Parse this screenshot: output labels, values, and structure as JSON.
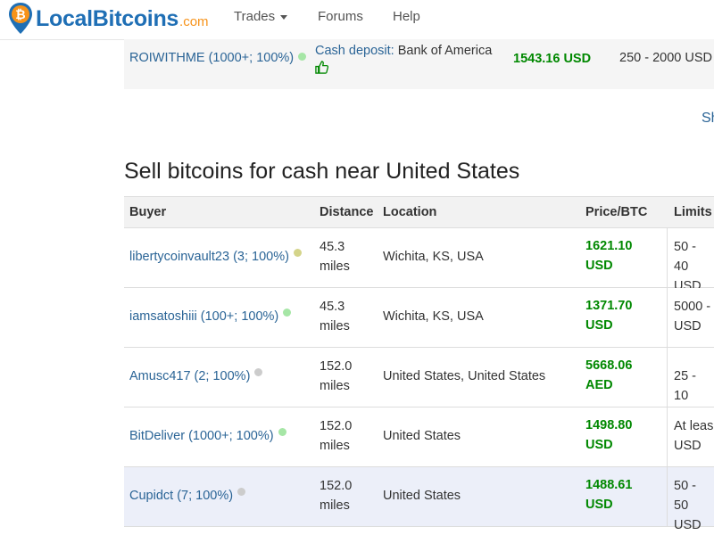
{
  "navbar": {
    "brand_main": "LocalBitcoins",
    "brand_suffix": ".com",
    "items": [
      {
        "label": "Trades",
        "has_dropdown": true
      },
      {
        "label": "Forums"
      },
      {
        "label": "Help"
      }
    ]
  },
  "top_offer": {
    "trader": "ROIWITHME (1000+; 100%)",
    "method_label": "Cash deposit:",
    "method_detail": "Bank of America",
    "price": "1543.16 USD",
    "limits": "250 - 2000 USD",
    "status_color": "#a6e6a6"
  },
  "show_more_link": "Sh",
  "section_title": "Sell bitcoins for cash near United States",
  "table": {
    "headers": [
      "Buyer",
      "Distance",
      "Location",
      "Price/BTC",
      "Limits"
    ],
    "rows": [
      {
        "buyer": "libertycoinvault23 (3; 100%)",
        "status_color": "#d4d48a",
        "distance_value": "45.3",
        "distance_unit": "miles",
        "location": "Wichita, KS, USA",
        "price_value": "1621.10",
        "price_currency": "USD",
        "limits_line1": "50 - 40",
        "limits_line2": "USD"
      },
      {
        "buyer": "iamsatoshiii (100+; 100%)",
        "status_color": "#a6e6a6",
        "distance_value": "45.3",
        "distance_unit": "miles",
        "location": "Wichita, KS, USA",
        "price_value": "1371.70",
        "price_currency": "USD",
        "limits_line1": "5000 -",
        "limits_line2": "USD"
      },
      {
        "buyer": "Amusc417 (2; 100%)",
        "status_color": "#cccccc",
        "distance_value": "152.0",
        "distance_unit": "miles",
        "location": "United States, United States",
        "price_value": "5668.06",
        "price_currency": "AED",
        "limits_line1": "25 - 10",
        "limits_line2": ""
      },
      {
        "buyer": "BitDeliver (1000+; 100%)",
        "status_color": "#a6e6a6",
        "distance_value": "152.0",
        "distance_unit": "miles",
        "location": "United States",
        "price_value": "1498.80",
        "price_currency": "USD",
        "limits_line1": "At leas",
        "limits_line2": "USD"
      },
      {
        "buyer": "Cupidct (7; 100%)",
        "status_color": "#cccccc",
        "distance_value": "152.0",
        "distance_unit": "miles",
        "location": "United States",
        "price_value": "1488.61",
        "price_currency": "USD",
        "limits_line1": "50 - 50",
        "limits_line2": "USD"
      }
    ]
  }
}
